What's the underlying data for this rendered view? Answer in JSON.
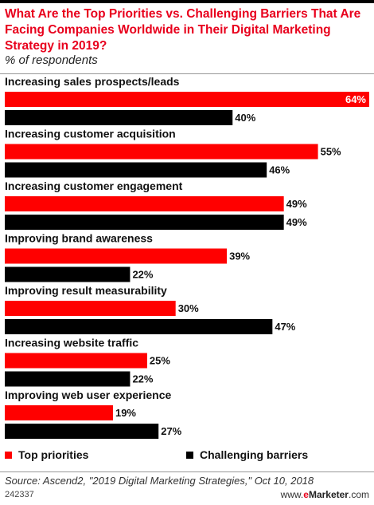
{
  "header": {
    "title": "What Are the Top Priorities vs. Challenging Barriers That Are Facing Companies Worldwide in Their Digital Marketing Strategy in 2019?",
    "subtitle": "% of respondents"
  },
  "chart_data": {
    "type": "bar",
    "orientation": "horizontal",
    "title": "What Are the Top Priorities vs. Challenging Barriers That Are Facing Companies Worldwide in Their Digital Marketing Strategy in 2019?",
    "subtitle": "% of respondents",
    "categories": [
      "Increasing sales prospects/leads",
      "Increasing customer acquisition",
      "Increasing customer engagement",
      "Improving brand awareness",
      "Improving result measurability",
      "Increasing website traffic",
      "Improving web user experience"
    ],
    "series": [
      {
        "name": "Top priorities",
        "color": "#ff0000",
        "values": [
          64,
          55,
          49,
          39,
          30,
          25,
          19
        ]
      },
      {
        "name": "Challenging barriers",
        "color": "#000000",
        "values": [
          40,
          46,
          49,
          22,
          47,
          22,
          27
        ]
      }
    ],
    "value_suffix": "%",
    "xlim": [
      0,
      64
    ],
    "grid": false,
    "legend": "bottom"
  },
  "legend": {
    "items": [
      {
        "label": "Top priorities",
        "color": "#ff0000"
      },
      {
        "label": "Challenging barriers",
        "color": "#000000"
      }
    ]
  },
  "footer": {
    "source": "Source: Ascend2, \"2019 Digital Marketing Strategies,\" Oct 10, 2018",
    "chart_id": "242337",
    "site_prefix": "www.",
    "site_e": "e",
    "site_brand": "Marketer",
    "site_suffix": ".com"
  }
}
